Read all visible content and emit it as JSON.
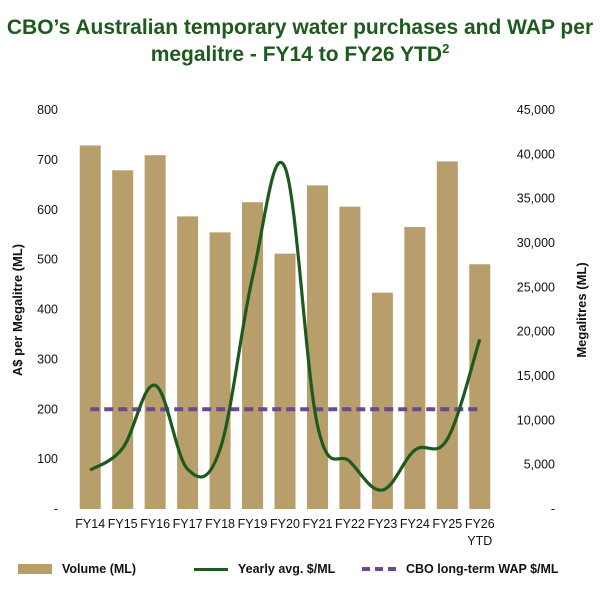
{
  "title_main": "CBO’s Australian temporary water purchases and WAP per megalitre - FY14 to FY26 YTD",
  "title_sup": "2",
  "chart_data": {
    "type": "bar",
    "categories": [
      "FY14",
      "FY15",
      "FY16",
      "FY17",
      "FY18",
      "FY19",
      "FY20",
      "FY21",
      "FY22",
      "FY23",
      "FY24",
      "FY25",
      "FY26 YTD"
    ],
    "ylabel_left": "A$ per Megalitre (ML)",
    "ylabel_right": "Megalitres (ML)",
    "y_left_ticks": [
      "-",
      "100",
      "200",
      "300",
      "400",
      "500",
      "600",
      "700",
      "800"
    ],
    "y_left_range": [
      0,
      800
    ],
    "y_right_ticks": [
      "-",
      "5,000",
      "10,000",
      "15,000",
      "20,000",
      "25,000",
      "30,000",
      "35,000",
      "40,000",
      "45,000"
    ],
    "y_right_range": [
      0,
      45000
    ],
    "series": [
      {
        "name": "Volume (ML)",
        "type": "bar",
        "axis": "right",
        "color": "#b79e6b",
        "values": [
          41000,
          38200,
          39900,
          33000,
          31200,
          34600,
          28800,
          36500,
          34100,
          24400,
          31800,
          39200,
          27600
        ]
      },
      {
        "name": "Yearly avg. $/ML",
        "type": "line",
        "axis": "left",
        "color": "#1e5a1e",
        "values": [
          78,
          122,
          248,
          80,
          120,
          465,
          685,
          168,
          95,
          38,
          118,
          140,
          340
        ]
      },
      {
        "name": "CBO long-term WAP $/ML",
        "type": "dashed-line",
        "axis": "left",
        "color": "#6b4794",
        "values": [
          200,
          200,
          200,
          200,
          200,
          200,
          200,
          200,
          200,
          200,
          200,
          200,
          200
        ]
      }
    ],
    "legend": "bottom",
    "grid": false
  }
}
